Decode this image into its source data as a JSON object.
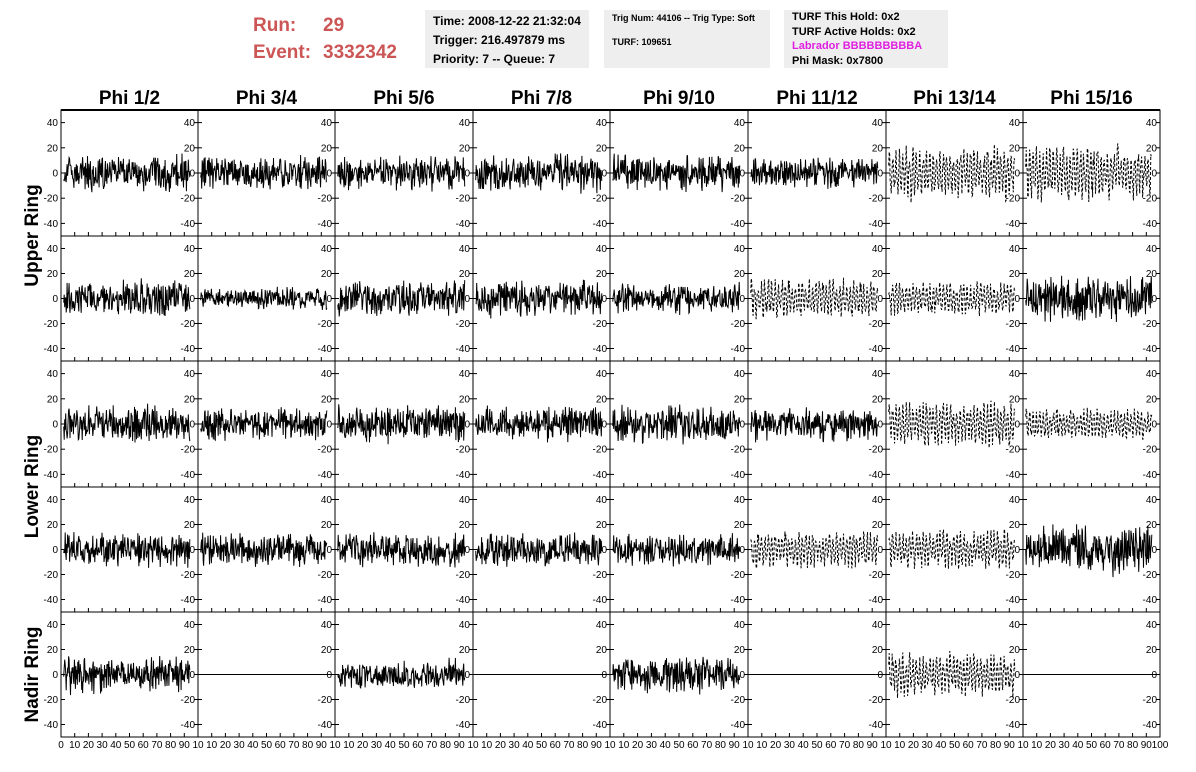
{
  "header": {
    "run_label": "Run:",
    "run_value": "29",
    "event_label": "Event:",
    "event_value": "3332342",
    "time_line": "Time: 2008-12-22 21:32:04",
    "trigger_line": "Trigger: 216.497879 ms",
    "priority_line": "Priority: 7 -- Queue: 7",
    "trig_num_line": "Trig Num: 44106 -- Trig Type: Soft",
    "turf_line": "TURF: 109651",
    "turf_this_hold": "TURF This Hold: 0x2",
    "turf_active_holds": "TURF Active Holds: 0x2",
    "labrador": "Labrador BBBBBBBBBA",
    "phi_mask": "Phi Mask: 0x7800"
  },
  "colors": {
    "run_text": "#cc5555",
    "labrador_text": "#e020e0",
    "info_bg": "#eeeeee",
    "trace": "#000000"
  },
  "chart_data": {
    "type": "line",
    "columns": [
      "Phi 1/2",
      "Phi 3/4",
      "Phi 5/6",
      "Phi 7/8",
      "Phi 9/10",
      "Phi 11/12",
      "Phi 13/14",
      "Phi 15/16"
    ],
    "rows": [
      "Upper Ring",
      "Upper Ring",
      "Lower Ring",
      "Lower Ring",
      "Nadir Ring"
    ],
    "row_group_labels": [
      "Upper Ring",
      "Lower Ring",
      "Nadir Ring"
    ],
    "xlim": [
      0,
      100
    ],
    "ylim": [
      -50,
      50
    ],
    "x_ticks": [
      0,
      10,
      20,
      30,
      40,
      50,
      60,
      70,
      80,
      90,
      100
    ],
    "x_tick_labels_first": [
      "0",
      "10",
      "20",
      "30",
      "40",
      "50",
      "60",
      "70",
      "80",
      "90",
      "10"
    ],
    "x_tick_labels_inner": [
      "10",
      "20",
      "30",
      "40",
      "50",
      "60",
      "70",
      "80",
      "90",
      "10"
    ],
    "x_tick_labels_last": [
      "10",
      "20",
      "30",
      "40",
      "50",
      "60",
      "70",
      "80",
      "90",
      "100"
    ],
    "y_ticks": [
      -40,
      -20,
      0,
      20,
      40
    ],
    "y_tick_labels": [
      "-40",
      "-20",
      "0",
      "20",
      "40"
    ],
    "panels": [
      [
        "solid",
        "solid",
        "solid",
        "solid",
        "solid",
        "solid",
        "dashed",
        "dashed"
      ],
      [
        "solid",
        "solid",
        "solid",
        "solid",
        "solid",
        "dashed",
        "dashed",
        "solid"
      ],
      [
        "solid",
        "solid",
        "solid",
        "solid",
        "solid",
        "solid",
        "dashed",
        "dashed"
      ],
      [
        "solid",
        "solid",
        "solid",
        "solid",
        "solid",
        "dashed",
        "dashed",
        "solid"
      ],
      [
        "solid",
        "flat",
        "solid",
        "flat",
        "solid",
        "flat",
        "dashed",
        "flat"
      ]
    ],
    "amplitude": [
      [
        12,
        11,
        11,
        12,
        12,
        10,
        20,
        20
      ],
      [
        12,
        7,
        12,
        12,
        10,
        14,
        12,
        15
      ],
      [
        12,
        11,
        12,
        11,
        12,
        11,
        16,
        11
      ],
      [
        11,
        11,
        11,
        11,
        10,
        13,
        14,
        16
      ],
      [
        12,
        0,
        10,
        0,
        12,
        0,
        16,
        0
      ]
    ],
    "grid": false,
    "legend": "none"
  }
}
